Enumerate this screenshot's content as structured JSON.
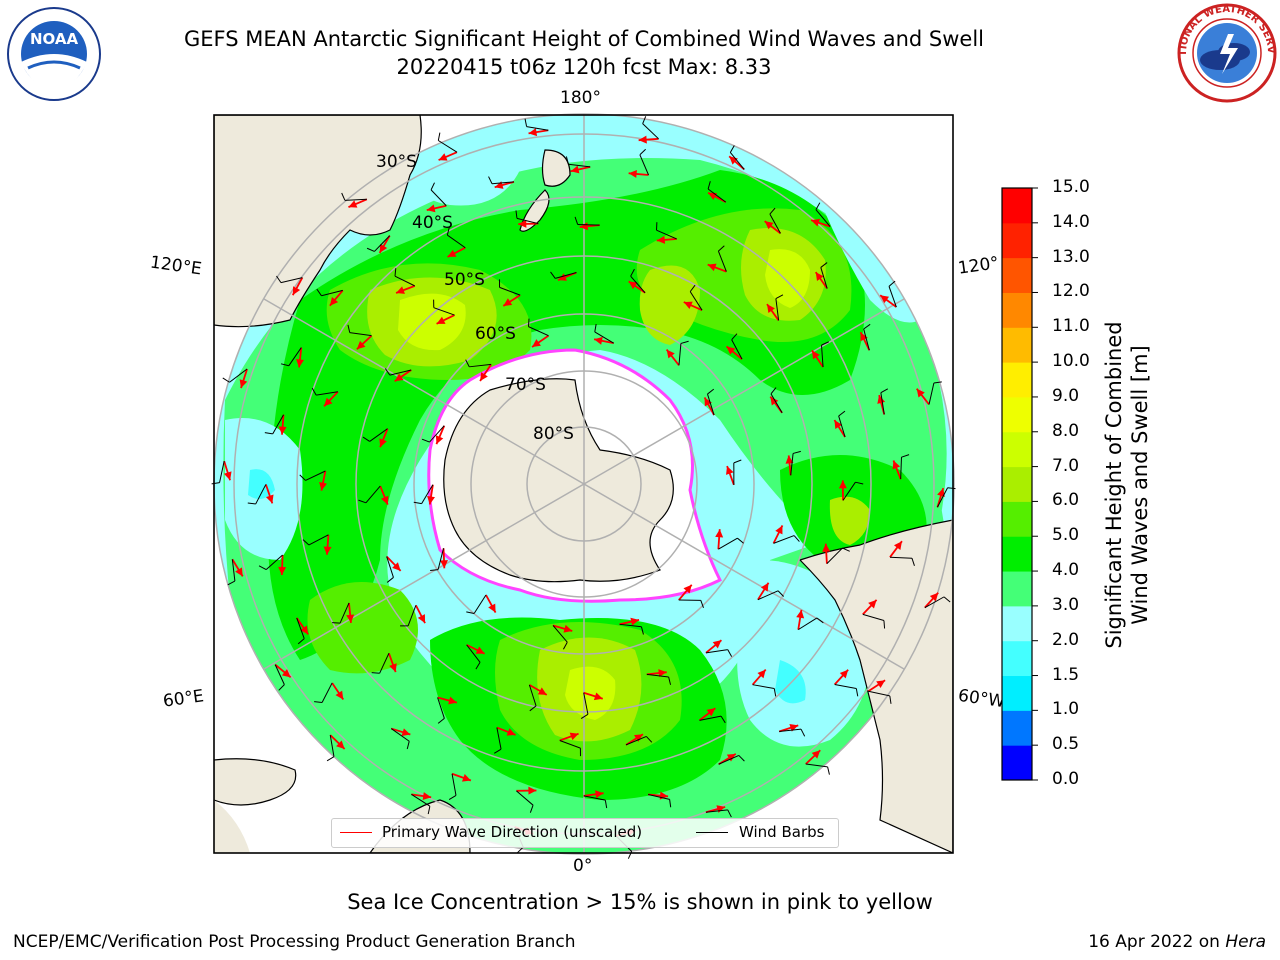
{
  "title_line1": "GEFS MEAN Antarctic Significant Height of Combined Wind Waves and Swell",
  "title_line2": "20220415 t06z 120h fcst   Max: 8.33",
  "longitude_labels": {
    "top": "180°",
    "bottom": "0°",
    "left_upper": "120°E",
    "left_lower": "60°E",
    "right_upper": "120°",
    "right_lower": "60°W"
  },
  "latitude_labels": [
    "30°S",
    "40°S",
    "50°S",
    "60°S",
    "70°S",
    "80°S"
  ],
  "legend": {
    "wave_label": "Primary Wave Direction (unscaled)",
    "wind_label": "Wind Barbs",
    "wave_color": "#ff0000",
    "wind_color": "#000000"
  },
  "colorbar": {
    "label_line1": "Significant Height of Combined",
    "label_line2": "Wind Waves and Swell [m]",
    "ticks": [
      "0.0",
      "0.5",
      "1.0",
      "1.5",
      "2.0",
      "3.0",
      "4.0",
      "5.0",
      "6.0",
      "7.0",
      "8.0",
      "9.0",
      "10.0",
      "11.0",
      "12.0",
      "13.0",
      "14.0",
      "15.0"
    ],
    "colors": [
      "#0000ff",
      "#0077ff",
      "#00eeff",
      "#44ffff",
      "#99ffff",
      "#44ff77",
      "#00ee00",
      "#55ee00",
      "#aaee00",
      "#ccff00",
      "#eeff00",
      "#ffee00",
      "#ffbb00",
      "#ff8800",
      "#ff5500",
      "#ff2200",
      "#ff0000"
    ]
  },
  "note": "Sea Ice Concentration > 15% is shown in pink to yellow",
  "credit": "NCEP/EMC/Verification Post Processing Product Generation Branch",
  "date_text": "16 Apr 2022 on ",
  "machine": "Hera",
  "logos": {
    "noaa": "NOAA",
    "nws": "NATIONAL WEATHER SERVICE"
  },
  "colors": {
    "land": "#eeeadc",
    "ice": "#ffffff",
    "ice_edge": "#ff44ff",
    "grid": "#b0b0b0"
  }
}
